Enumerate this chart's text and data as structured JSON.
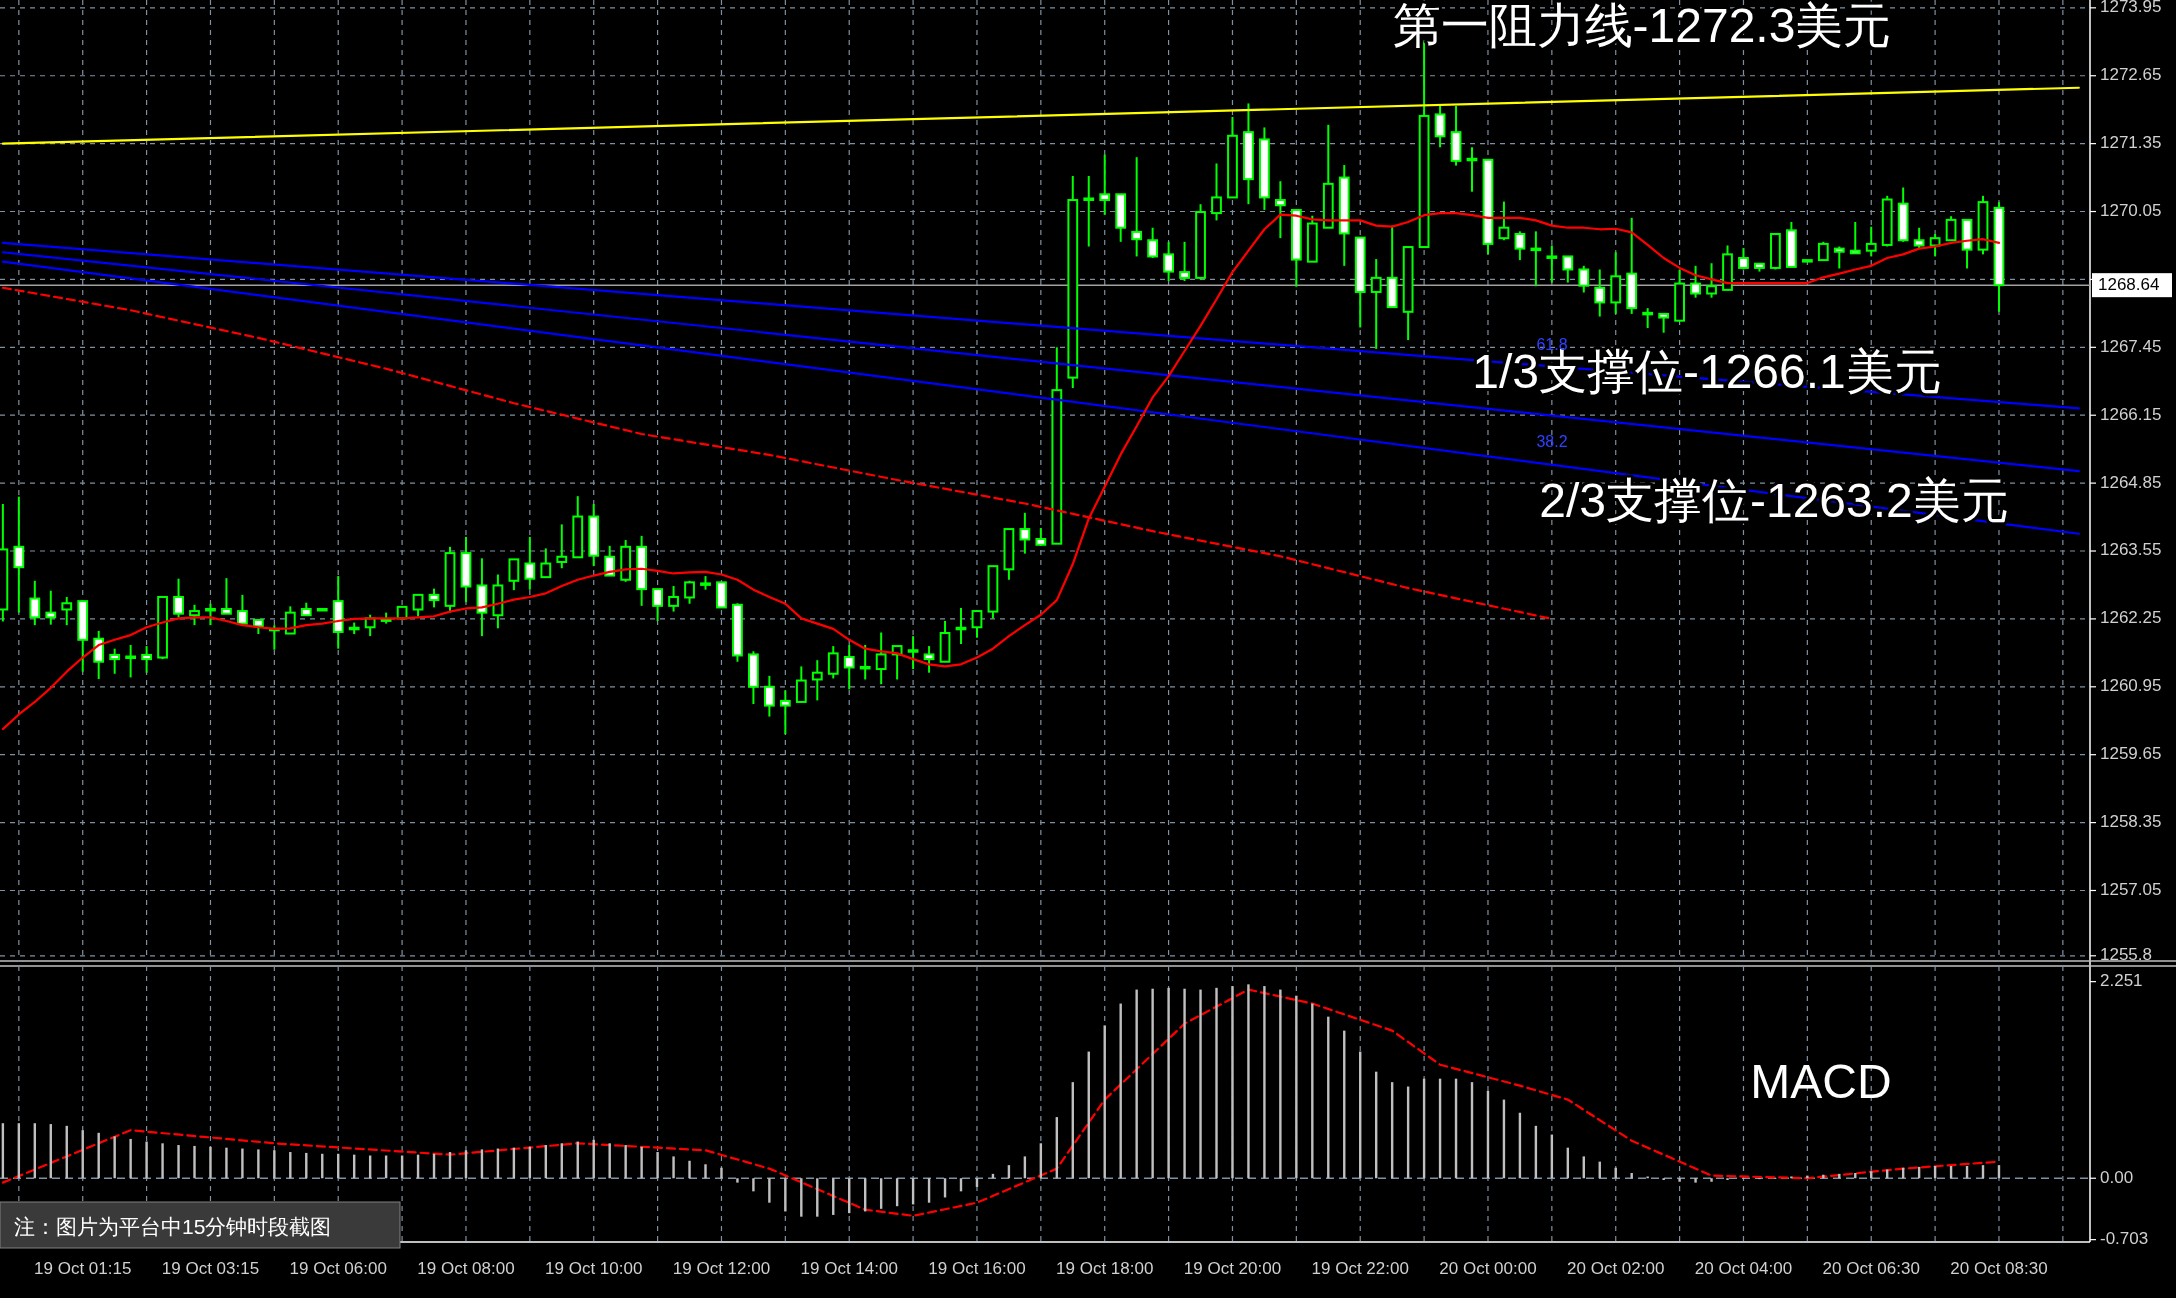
{
  "chart_data": [
    {
      "type": "candlestick",
      "color": "#00ff00",
      "categories": [
        null,
        null,
        null,
        null,
        null,
        null,
        null,
        null,
        null,
        null,
        null,
        null,
        null,
        null,
        null,
        null,
        null,
        null,
        null,
        null,
        null,
        null,
        null,
        null,
        null,
        null,
        null,
        null,
        null,
        null,
        null,
        null,
        null,
        null,
        null,
        null,
        null,
        null,
        null,
        null,
        null,
        null,
        null,
        null,
        null,
        null,
        null,
        null,
        null,
        null,
        null,
        null,
        null,
        null,
        null,
        null,
        null,
        null,
        null,
        null,
        null,
        null,
        null,
        null,
        null,
        null,
        null,
        null,
        null,
        null,
        null,
        null,
        null,
        null,
        null,
        null,
        null,
        null,
        null,
        null,
        null,
        null,
        null,
        null,
        null,
        null,
        null,
        null,
        null,
        null,
        null,
        null,
        null,
        null,
        null,
        null,
        null,
        null,
        null,
        null,
        null,
        null,
        null,
        null,
        null,
        null,
        null,
        null,
        null,
        null,
        null,
        null,
        null,
        null,
        null,
        null,
        null,
        null,
        null,
        null,
        null,
        null,
        null,
        null,
        null,
        null,
        null,
        null,
        null,
        null,
        null
      ],
      "ohlc": [
        [
          1262.43,
          1264.45,
          1262.2,
          1263.58
        ],
        [
          1263.63,
          1264.59,
          1262.37,
          1263.24
        ],
        [
          1262.64,
          1262.98,
          1262.13,
          1262.28
        ],
        [
          1262.37,
          1262.79,
          1262.14,
          1262.28
        ],
        [
          1262.43,
          1262.67,
          1262.13,
          1262.55
        ],
        [
          1262.59,
          1262.59,
          1261.24,
          1261.85
        ],
        [
          1261.87,
          1262.02,
          1261.1,
          1261.43
        ],
        [
          1261.56,
          1261.68,
          1261.2,
          1261.48
        ],
        [
          1261.53,
          1261.75,
          1261.13,
          1261.53
        ],
        [
          1261.56,
          1261.73,
          1261.22,
          1261.48
        ],
        [
          1261.51,
          1262.67,
          1261.48,
          1262.67
        ],
        [
          1262.67,
          1263.02,
          1262.28,
          1262.35
        ],
        [
          1262.32,
          1262.52,
          1262.13,
          1262.4
        ],
        [
          1262.44,
          1262.54,
          1262.13,
          1262.44
        ],
        [
          1262.44,
          1263.03,
          1262.35,
          1262.35
        ],
        [
          1262.4,
          1262.71,
          1262.16,
          1262.16
        ],
        [
          1262.23,
          1262.23,
          1261.96,
          1262.11
        ],
        [
          1262.06,
          1262.13,
          1261.66,
          1262.06
        ],
        [
          1261.97,
          1262.49,
          1261.97,
          1262.37
        ],
        [
          1262.44,
          1262.56,
          1262.32,
          1262.32
        ],
        [
          1262.44,
          1262.44,
          1262.44,
          1262.44
        ],
        [
          1262.59,
          1263.07,
          1261.68,
          1262.0
        ],
        [
          1262.08,
          1262.18,
          1261.96,
          1262.08
        ],
        [
          1262.09,
          1262.33,
          1261.92,
          1262.26
        ],
        [
          1262.24,
          1262.37,
          1262.16,
          1262.24
        ],
        [
          1262.26,
          1262.48,
          1262.26,
          1262.48
        ],
        [
          1262.43,
          1262.71,
          1262.3,
          1262.71
        ],
        [
          1262.71,
          1262.83,
          1262.47,
          1262.61
        ],
        [
          1262.5,
          1263.63,
          1262.37,
          1263.51
        ],
        [
          1263.51,
          1263.82,
          1262.57,
          1262.87
        ],
        [
          1262.89,
          1263.41,
          1261.92,
          1262.37
        ],
        [
          1262.32,
          1263.1,
          1262.07,
          1262.89
        ],
        [
          1262.98,
          1263.39,
          1262.8,
          1263.39
        ],
        [
          1263.31,
          1263.82,
          1262.81,
          1263.02
        ],
        [
          1263.05,
          1263.6,
          1263.05,
          1263.31
        ],
        [
          1263.34,
          1264.06,
          1263.22,
          1263.44
        ],
        [
          1263.43,
          1264.6,
          1263.43,
          1264.21
        ],
        [
          1264.21,
          1264.45,
          1263.26,
          1263.46
        ],
        [
          1263.44,
          1263.65,
          1263.08,
          1263.08
        ],
        [
          1263.0,
          1263.76,
          1262.96,
          1263.63
        ],
        [
          1263.63,
          1263.84,
          1262.5,
          1262.82
        ],
        [
          1262.82,
          1262.82,
          1262.21,
          1262.5
        ],
        [
          1262.5,
          1262.88,
          1262.39,
          1262.67
        ],
        [
          1262.66,
          1262.98,
          1262.54,
          1262.95
        ],
        [
          1262.93,
          1263.07,
          1262.81,
          1262.93
        ],
        [
          1262.95,
          1262.95,
          1262.47,
          1262.47
        ],
        [
          1262.52,
          1262.55,
          1261.43,
          1261.55
        ],
        [
          1261.57,
          1261.63,
          1260.62,
          1260.95
        ],
        [
          1260.95,
          1261.16,
          1260.38,
          1260.59
        ],
        [
          1260.68,
          1260.88,
          1260.04,
          1260.59
        ],
        [
          1260.66,
          1261.34,
          1260.66,
          1261.07
        ],
        [
          1261.09,
          1261.46,
          1260.69,
          1261.22
        ],
        [
          1261.2,
          1261.73,
          1261.11,
          1261.59
        ],
        [
          1261.52,
          1261.75,
          1260.9,
          1261.32
        ],
        [
          1261.33,
          1261.75,
          1261.09,
          1261.33
        ],
        [
          1261.29,
          1261.99,
          1261.0,
          1261.57
        ],
        [
          1261.57,
          1261.73,
          1261.09,
          1261.73
        ],
        [
          1261.65,
          1261.92,
          1261.29,
          1261.65
        ],
        [
          1261.57,
          1261.73,
          1261.22,
          1261.48
        ],
        [
          1261.43,
          1262.21,
          1261.43,
          1261.98
        ],
        [
          1262.08,
          1262.46,
          1261.77,
          1262.08
        ],
        [
          1262.09,
          1262.4,
          1261.89,
          1262.4
        ],
        [
          1262.39,
          1263.26,
          1262.26,
          1263.26
        ],
        [
          1263.2,
          1263.97,
          1263.0,
          1263.97
        ],
        [
          1263.97,
          1264.28,
          1263.5,
          1263.77
        ],
        [
          1263.78,
          1263.99,
          1263.65,
          1263.67
        ],
        [
          1263.69,
          1267.45,
          1263.69,
          1266.63
        ],
        [
          1266.87,
          1270.73,
          1266.67,
          1270.27
        ],
        [
          1270.3,
          1270.73,
          1269.38,
          1270.3
        ],
        [
          1270.38,
          1271.14,
          1269.99,
          1270.27
        ],
        [
          1270.38,
          1270.38,
          1269.47,
          1269.74
        ],
        [
          1269.66,
          1271.09,
          1269.19,
          1269.52
        ],
        [
          1269.5,
          1269.74,
          1269.16,
          1269.19
        ],
        [
          1269.23,
          1269.47,
          1268.72,
          1268.9
        ],
        [
          1268.89,
          1269.47,
          1268.72,
          1268.78
        ],
        [
          1268.78,
          1270.19,
          1268.75,
          1270.04
        ],
        [
          1270.02,
          1270.97,
          1269.88,
          1270.32
        ],
        [
          1270.32,
          1271.86,
          1270.32,
          1271.5
        ],
        [
          1271.57,
          1272.12,
          1270.19,
          1270.67
        ],
        [
          1271.43,
          1271.66,
          1270.08,
          1270.32
        ],
        [
          1270.27,
          1270.63,
          1269.54,
          1270.17
        ],
        [
          1270.08,
          1270.08,
          1268.61,
          1269.13
        ],
        [
          1269.09,
          1269.97,
          1269.09,
          1269.82
        ],
        [
          1269.74,
          1271.71,
          1269.74,
          1270.58
        ],
        [
          1270.7,
          1270.94,
          1269.01,
          1269.63
        ],
        [
          1269.55,
          1269.55,
          1267.83,
          1268.51
        ],
        [
          1268.51,
          1269.14,
          1267.42,
          1268.78
        ],
        [
          1268.78,
          1269.78,
          1268.22,
          1268.22
        ],
        [
          1268.13,
          1269.37,
          1267.59,
          1269.37
        ],
        [
          1269.37,
          1273.3,
          1269.37,
          1271.88
        ],
        [
          1271.91,
          1272.07,
          1271.28,
          1271.49
        ],
        [
          1271.57,
          1272.07,
          1270.93,
          1271.02
        ],
        [
          1271.06,
          1271.28,
          1270.43,
          1271.06
        ],
        [
          1271.04,
          1271.04,
          1269.23,
          1269.43
        ],
        [
          1269.54,
          1270.24,
          1269.5,
          1269.74
        ],
        [
          1269.62,
          1269.67,
          1269.12,
          1269.34
        ],
        [
          1269.34,
          1269.67,
          1268.62,
          1269.34
        ],
        [
          1269.19,
          1269.4,
          1268.69,
          1269.19
        ],
        [
          1269.19,
          1269.19,
          1268.69,
          1268.94
        ],
        [
          1268.94,
          1269.01,
          1268.5,
          1268.63
        ],
        [
          1268.59,
          1268.94,
          1268.04,
          1268.31
        ],
        [
          1268.31,
          1269.27,
          1268.09,
          1268.81
        ],
        [
          1268.86,
          1269.93,
          1268.09,
          1268.2
        ],
        [
          1268.11,
          1268.2,
          1267.82,
          1268.11
        ],
        [
          1268.09,
          1268.09,
          1267.73,
          1268.02
        ],
        [
          1267.96,
          1268.94,
          1267.96,
          1268.67
        ],
        [
          1268.67,
          1269.01,
          1268.4,
          1268.48
        ],
        [
          1268.48,
          1269.06,
          1268.4,
          1268.62
        ],
        [
          1268.55,
          1269.4,
          1268.55,
          1269.23
        ],
        [
          1269.16,
          1269.35,
          1268.94,
          1268.97
        ],
        [
          1269.05,
          1269.05,
          1268.9,
          1268.97
        ],
        [
          1268.97,
          1269.62,
          1268.94,
          1269.62
        ],
        [
          1269.69,
          1269.85,
          1268.99,
          1268.99
        ],
        [
          1269.12,
          1269.12,
          1269.12,
          1269.12
        ],
        [
          1269.12,
          1269.47,
          1269.12,
          1269.43
        ],
        [
          1269.34,
          1269.38,
          1268.96,
          1269.28
        ],
        [
          1269.3,
          1269.85,
          1269.25,
          1269.25
        ],
        [
          1269.3,
          1269.76,
          1269.19,
          1269.43
        ],
        [
          1269.41,
          1270.35,
          1269.38,
          1270.28
        ],
        [
          1270.2,
          1270.51,
          1269.47,
          1269.5
        ],
        [
          1269.5,
          1269.74,
          1269.34,
          1269.4
        ],
        [
          1269.4,
          1269.62,
          1269.19,
          1269.54
        ],
        [
          1269.5,
          1269.96,
          1269.5,
          1269.89
        ],
        [
          1269.89,
          1269.89,
          1268.96,
          1269.32
        ],
        [
          1269.32,
          1270.35,
          1269.23,
          1270.23
        ],
        [
          1270.12,
          1270.23,
          1268.13,
          1268.64
        ],
        null,
        null,
        null,
        null,
        null
      ],
      "series": [
        {
          "type": "line",
          "color": "#0000ff",
          "values": [
            1269.45,
            null,
            null,
            null,
            null,
            null,
            null,
            null,
            null,
            null,
            null,
            null,
            null,
            null,
            null,
            null,
            null,
            null,
            null,
            null,
            null,
            null,
            null,
            null,
            null,
            null,
            null,
            null,
            null,
            null,
            null,
            null,
            null,
            null,
            null,
            null,
            null,
            null,
            null,
            null,
            null,
            null,
            null,
            null,
            null,
            null,
            null,
            null,
            null,
            null,
            null,
            null,
            null,
            null,
            null,
            null,
            null,
            null,
            null,
            null,
            null,
            null,
            null,
            null,
            null,
            null,
            null,
            null,
            null,
            null,
            null,
            null,
            null,
            null,
            null,
            null,
            null,
            null,
            null,
            null,
            null,
            null,
            null,
            null,
            null,
            null,
            null,
            null,
            null,
            null,
            null,
            null,
            null,
            null,
            null,
            null,
            null,
            null,
            null,
            null,
            null,
            null,
            null,
            null,
            null,
            null,
            null,
            null,
            null,
            null,
            null,
            null,
            null,
            null,
            null,
            null,
            null,
            null,
            null,
            null,
            null,
            null,
            null,
            null,
            null,
            null,
            null,
            null,
            null,
            null,
            1266.28
          ]
        },
        {
          "type": "line",
          "color": "#0000ff",
          "values": [
            1269.27,
            null,
            null,
            null,
            null,
            null,
            null,
            null,
            null,
            null,
            null,
            null,
            null,
            null,
            null,
            null,
            null,
            null,
            null,
            null,
            null,
            null,
            null,
            null,
            null,
            null,
            null,
            null,
            null,
            null,
            null,
            null,
            null,
            null,
            null,
            null,
            null,
            null,
            null,
            null,
            null,
            null,
            null,
            null,
            null,
            null,
            null,
            null,
            null,
            null,
            null,
            null,
            null,
            null,
            null,
            null,
            null,
            null,
            null,
            null,
            null,
            null,
            null,
            null,
            null,
            null,
            null,
            null,
            null,
            null,
            null,
            null,
            null,
            null,
            null,
            null,
            null,
            null,
            null,
            null,
            null,
            null,
            null,
            null,
            null,
            null,
            null,
            null,
            null,
            null,
            null,
            null,
            null,
            null,
            null,
            null,
            null,
            null,
            null,
            null,
            null,
            null,
            null,
            null,
            null,
            null,
            null,
            null,
            null,
            null,
            null,
            null,
            null,
            null,
            null,
            null,
            null,
            null,
            null,
            null,
            null,
            null,
            null,
            null,
            null,
            null,
            null,
            null,
            null,
            null,
            1265.08
          ]
        },
        {
          "type": "line",
          "color": "#0000ff",
          "values": [
            1269.09,
            null,
            null,
            null,
            null,
            null,
            null,
            null,
            null,
            null,
            null,
            null,
            null,
            null,
            null,
            null,
            null,
            null,
            null,
            null,
            null,
            null,
            null,
            null,
            null,
            null,
            null,
            null,
            null,
            null,
            null,
            null,
            null,
            null,
            null,
            null,
            null,
            null,
            null,
            null,
            null,
            null,
            null,
            null,
            null,
            null,
            null,
            null,
            null,
            null,
            null,
            null,
            null,
            null,
            null,
            null,
            null,
            null,
            null,
            null,
            null,
            null,
            null,
            null,
            null,
            null,
            null,
            null,
            null,
            null,
            null,
            null,
            null,
            null,
            null,
            null,
            null,
            null,
            null,
            null,
            null,
            null,
            null,
            null,
            null,
            null,
            null,
            null,
            null,
            null,
            null,
            null,
            null,
            null,
            null,
            null,
            null,
            null,
            null,
            null,
            null,
            null,
            null,
            null,
            null,
            null,
            null,
            null,
            null,
            null,
            null,
            null,
            null,
            null,
            null,
            null,
            null,
            null,
            null,
            null,
            null,
            null,
            null,
            null,
            null,
            null,
            null,
            null,
            null,
            null,
            1263.88
          ]
        },
        {
          "type": "line",
          "color": "#ff0000",
          "line_style": "dashed",
          "values": [
            1268.59,
            null,
            null,
            null,
            null,
            null,
            null,
            null,
            1268.16,
            null,
            null,
            null,
            null,
            null,
            null,
            null,
            1267.63,
            null,
            null,
            null,
            null,
            null,
            null,
            null,
            1267.04,
            null,
            null,
            null,
            null,
            null,
            null,
            null,
            1266.38,
            null,
            null,
            null,
            null,
            null,
            null,
            null,
            1265.79,
            null,
            null,
            null,
            null,
            null,
            null,
            null,
            1265.39,
            null,
            null,
            null,
            null,
            null,
            null,
            null,
            1264.91,
            null,
            null,
            null,
            null,
            null,
            null,
            null,
            1264.46,
            null,
            null,
            null,
            null,
            null,
            null,
            null,
            1263.93,
            null,
            null,
            null,
            null,
            null,
            null,
            null,
            1263.45,
            null,
            null,
            null,
            null,
            null,
            null,
            null,
            1262.84,
            null,
            null,
            null,
            null,
            null,
            null,
            null,
            null,
            1262.25,
            null,
            null,
            null,
            null,
            null,
            null,
            null,
            null,
            null,
            null,
            null,
            null,
            null,
            null,
            null,
            null,
            null,
            null,
            null,
            null,
            null,
            null,
            null,
            null,
            null,
            null,
            null,
            null,
            null,
            null,
            null,
            null,
            null
          ]
        },
        {
          "type": "line",
          "color": "#ff0000",
          "values": [
            1260.14,
            1260.42,
            1260.66,
            1260.93,
            1261.24,
            1261.51,
            1261.75,
            1261.85,
            1261.94,
            1262.09,
            1262.18,
            1262.26,
            1262.28,
            1262.28,
            1262.21,
            1262.13,
            1262.09,
            1262.06,
            1262.07,
            1262.13,
            1262.16,
            1262.21,
            1262.25,
            1262.26,
            1262.26,
            1262.26,
            1262.28,
            1262.3,
            1262.39,
            1262.45,
            1262.47,
            1262.54,
            1262.62,
            1262.67,
            1262.74,
            1262.88,
            1263.0,
            1263.08,
            1263.15,
            1263.2,
            1263.21,
            1263.17,
            1263.12,
            1263.14,
            1263.15,
            1263.1,
            1263.0,
            1262.81,
            1262.67,
            1262.54,
            1262.26,
            1262.16,
            1262.06,
            1261.85,
            1261.68,
            1261.63,
            1261.59,
            1261.48,
            1261.38,
            1261.34,
            1261.38,
            1261.51,
            1261.68,
            1261.92,
            1262.13,
            1262.33,
            1262.61,
            1263.3,
            1264.17,
            1264.78,
            1265.4,
            1265.94,
            1266.49,
            1266.9,
            1267.38,
            1267.86,
            1268.37,
            1268.89,
            1269.3,
            1269.71,
            1269.99,
            1269.97,
            1269.9,
            1269.88,
            1269.88,
            1269.88,
            1269.78,
            1269.76,
            1269.85,
            1269.98,
            1270.02,
            1270.02,
            1269.98,
            1269.93,
            1269.93,
            1269.93,
            1269.88,
            1269.78,
            1269.74,
            1269.74,
            1269.71,
            1269.72,
            1269.65,
            1269.41,
            1269.16,
            1268.97,
            1268.83,
            1268.75,
            1268.68,
            1268.68,
            1268.68,
            1268.68,
            1268.68,
            1268.68,
            1268.79,
            1268.86,
            1268.94,
            1269.01,
            1269.16,
            1269.23,
            1269.34,
            1269.38,
            1269.45,
            1269.49,
            1269.52,
            1269.45,
            null,
            null,
            null,
            null,
            null
          ]
        },
        {
          "type": "line",
          "color": "#ffff00",
          "values": [
            1271.35,
            null,
            null,
            null,
            null,
            null,
            null,
            null,
            null,
            null,
            null,
            null,
            null,
            null,
            null,
            null,
            null,
            null,
            null,
            null,
            null,
            null,
            null,
            null,
            null,
            null,
            null,
            null,
            null,
            null,
            null,
            null,
            null,
            null,
            null,
            null,
            null,
            null,
            null,
            null,
            null,
            null,
            null,
            null,
            null,
            null,
            null,
            null,
            null,
            null,
            null,
            null,
            null,
            null,
            null,
            null,
            null,
            null,
            null,
            null,
            null,
            null,
            null,
            null,
            null,
            null,
            null,
            null,
            null,
            null,
            null,
            null,
            null,
            null,
            null,
            null,
            null,
            null,
            null,
            null,
            null,
            null,
            null,
            null,
            null,
            null,
            null,
            null,
            null,
            null,
            null,
            null,
            null,
            null,
            null,
            null,
            null,
            null,
            null,
            null,
            null,
            null,
            null,
            null,
            null,
            null,
            null,
            null,
            null,
            null,
            null,
            null,
            null,
            null,
            null,
            null,
            null,
            null,
            null,
            null,
            null,
            null,
            null,
            null,
            null,
            null,
            null,
            null,
            null,
            null,
            1272.42
          ]
        }
      ],
      "ylim": [
        1255.7,
        1274.1
      ],
      "yticks": [
        1273.95,
        1272.65,
        1271.35,
        1270.05,
        {
          "value": 1268.75,
          "label": null
        },
        1267.45,
        1266.15,
        1264.85,
        1263.55,
        1262.25,
        1260.95,
        1259.65,
        1258.35,
        1257.05,
        1255.8
      ],
      "grid": true,
      "tick_labels": "y",
      "ref_lines": [
        {
          "axis": "y",
          "value": 1268.64,
          "label": "1268.64",
          "color": "#a0a0a0"
        }
      ],
      "annotations": [
        "第一阻力线-1272.3美元",
        "1/3支撑位-1266.1美元",
        "2/3支撑位-1263.2美元",
        "61.8",
        "38.2"
      ]
    },
    {
      "type": "bar",
      "title": "MACD",
      "categories": [
        null,
        null,
        null,
        null,
        null,
        "19 Oct 01:15",
        null,
        null,
        null,
        null,
        null,
        null,
        null,
        "19 Oct 03:15",
        null,
        null,
        null,
        null,
        null,
        null,
        null,
        "19 Oct 06:00",
        null,
        null,
        null,
        null,
        null,
        null,
        null,
        "19 Oct 08:00",
        null,
        null,
        null,
        null,
        null,
        null,
        null,
        "19 Oct 10:00",
        null,
        null,
        null,
        null,
        null,
        null,
        null,
        "19 Oct 12:00",
        null,
        null,
        null,
        null,
        null,
        null,
        null,
        "19 Oct 14:00",
        null,
        null,
        null,
        null,
        null,
        null,
        null,
        "19 Oct 16:00",
        null,
        null,
        null,
        null,
        null,
        null,
        null,
        "19 Oct 18:00",
        null,
        null,
        null,
        null,
        null,
        null,
        null,
        "19 Oct 20:00",
        null,
        null,
        null,
        null,
        null,
        null,
        null,
        "19 Oct 22:00",
        null,
        null,
        null,
        null,
        null,
        null,
        null,
        "20 Oct 00:00",
        null,
        null,
        null,
        null,
        null,
        null,
        null,
        "20 Oct 02:00",
        null,
        null,
        null,
        null,
        null,
        null,
        null,
        "20 Oct 04:00",
        null,
        null,
        null,
        null,
        null,
        null,
        null,
        "20 Oct 06:30",
        null,
        null,
        null,
        null,
        null,
        null,
        null,
        "20 Oct 08:30",
        null,
        null,
        null,
        null,
        null
      ],
      "series": [
        {
          "type": "bar",
          "color": "#c0c0c0",
          "values": [
            0.63,
            0.63,
            0.63,
            0.62,
            0.6,
            0.55,
            0.52,
            0.48,
            0.45,
            0.42,
            0.4,
            0.38,
            0.37,
            0.36,
            0.35,
            0.34,
            0.33,
            0.32,
            0.3,
            0.29,
            0.28,
            0.28,
            0.27,
            0.26,
            0.26,
            0.26,
            0.27,
            0.28,
            0.3,
            0.32,
            0.33,
            0.34,
            0.35,
            0.36,
            0.38,
            0.4,
            0.42,
            0.44,
            0.4,
            0.38,
            0.36,
            0.3,
            0.25,
            0.2,
            0.16,
            0.12,
            -0.05,
            -0.15,
            -0.28,
            -0.38,
            -0.44,
            -0.44,
            -0.42,
            -0.4,
            -0.38,
            -0.35,
            -0.32,
            -0.3,
            -0.28,
            -0.22,
            -0.15,
            -0.1,
            0.05,
            0.15,
            0.25,
            0.4,
            0.7,
            1.1,
            1.45,
            1.75,
            2.0,
            2.16,
            2.17,
            2.18,
            2.17,
            2.16,
            2.18,
            2.2,
            2.22,
            2.2,
            2.16,
            2.09,
            2.0,
            1.85,
            1.69,
            1.45,
            1.22,
            1.1,
            1.05,
            1.14,
            1.14,
            1.14,
            1.1,
            1.0,
            0.9,
            0.75,
            0.6,
            0.5,
            0.35,
            0.25,
            0.19,
            0.12,
            0.06,
            0.02,
            -0.02,
            -0.04,
            -0.05,
            -0.04,
            -0.02,
            0.0,
            -0.01,
            0.0,
            0.02,
            0.03,
            0.04,
            0.05,
            0.06,
            0.08,
            0.1,
            0.12,
            0.13,
            0.14,
            0.14,
            0.14,
            0.15,
            0.15,
            null,
            null,
            null,
            null,
            null
          ]
        },
        {
          "type": "line",
          "color": "#ff0000",
          "line_style": "dashed",
          "values": [
            -0.05,
            null,
            null,
            null,
            null,
            null,
            null,
            null,
            0.55,
            null,
            null,
            null,
            null,
            null,
            null,
            null,
            null,
            0.4,
            null,
            null,
            null,
            null,
            null,
            null,
            null,
            null,
            null,
            null,
            0.27,
            null,
            null,
            null,
            null,
            null,
            null,
            null,
            0.4,
            null,
            null,
            null,
            null,
            null,
            null,
            null,
            0.32,
            null,
            null,
            null,
            0.11,
            null,
            null,
            null,
            null,
            null,
            -0.36,
            null,
            null,
            -0.43,
            null,
            null,
            null,
            -0.28,
            null,
            null,
            null,
            null,
            0.11,
            null,
            null,
            0.9,
            null,
            null,
            null,
            null,
            1.77,
            null,
            null,
            null,
            2.16,
            null,
            null,
            null,
            2.0,
            null,
            null,
            null,
            null,
            1.69,
            null,
            null,
            1.3,
            null,
            null,
            null,
            null,
            1.06,
            null,
            null,
            0.9,
            null,
            null,
            null,
            0.43,
            null,
            null,
            null,
            null,
            0.03,
            null,
            null,
            null,
            null,
            null,
            0.0,
            null,
            null,
            null,
            null,
            null,
            0.11,
            null,
            null,
            null,
            null,
            null,
            0.19,
            null,
            null,
            null,
            null,
            null
          ]
        }
      ],
      "ylim": [
        -0.73,
        2.43
      ],
      "yticks": [
        2.251,
        {
          "value": 0,
          "label": "0.00"
        },
        -0.703
      ],
      "grid": "x",
      "ref_lines": [
        {
          "axis": "y",
          "value": 0,
          "color": "#8090a0",
          "line_style": "dashed"
        }
      ],
      "annotations": [
        "注：图片为平台中15分钟时段截图"
      ]
    }
  ]
}
